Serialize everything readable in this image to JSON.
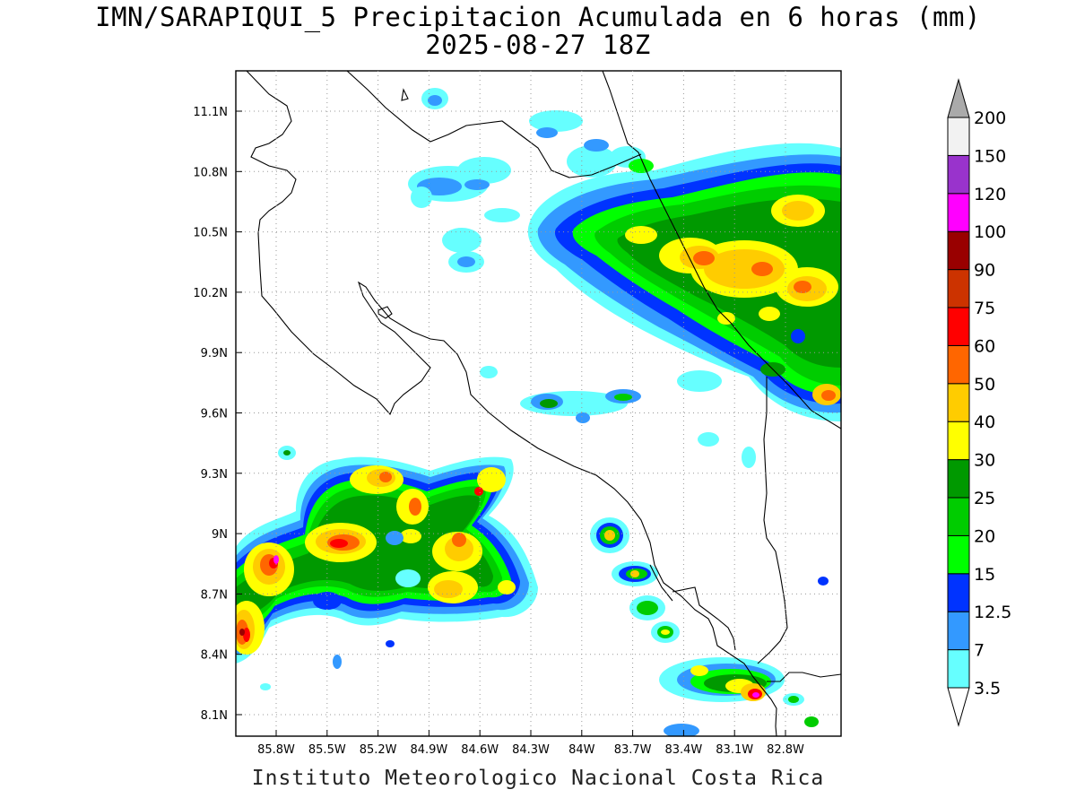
{
  "title": {
    "line1": "IMN/SARAPIQUI_5 Precipitacion Acumulada en 6 horas (mm)",
    "line2": "2025-08-27 18Z"
  },
  "footer": "Instituto Meteorologico Nacional Costa Rica",
  "axes": {
    "lat_ticks": [
      "11.1N",
      "10.8N",
      "10.5N",
      "10.2N",
      "9.9N",
      "9.6N",
      "9.3N",
      "9N",
      "8.7N",
      "8.4N",
      "8.1N"
    ],
    "lon_ticks": [
      "85.8W",
      "85.5W",
      "85.2W",
      "84.9W",
      "84.6W",
      "84.3W",
      "84W",
      "83.7W",
      "83.4W",
      "83.1W",
      "82.8W"
    ]
  },
  "colorbar": {
    "labels": [
      "3.5",
      "7",
      "12.5",
      "15",
      "20",
      "25",
      "30",
      "40",
      "50",
      "60",
      "75",
      "90",
      "100",
      "120",
      "150",
      "200"
    ],
    "colors": [
      "#66ffff",
      "#3399ff",
      "#0033ff",
      "#00ff00",
      "#00cc00",
      "#009900",
      "#ffff00",
      "#ffcc00",
      "#ff6600",
      "#ff0000",
      "#cc3300",
      "#990000",
      "#ff00ff",
      "#9933cc",
      "#f2f2f2"
    ],
    "under_color": "#ffffff",
    "over_color": "#aaaaaa"
  }
}
